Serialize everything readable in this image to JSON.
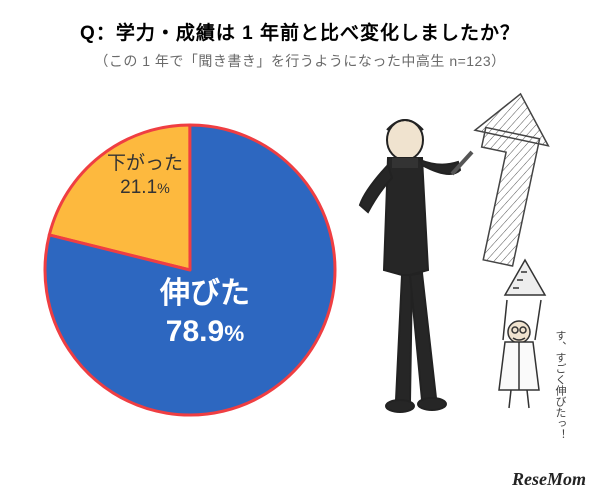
{
  "title": "Q：学力・成績は 1 年前と比べ変化しましたか？",
  "title_fontsize": 19,
  "subtitle": "（この 1 年で「聞き書き」を行うようになった中高生 n=123）",
  "subtitle_fontsize": 14,
  "subtitle_color": "#6a6a6a",
  "chart": {
    "type": "pie",
    "diameter": 290,
    "start_angle_deg": -90,
    "outline_color": "#ef3e42",
    "outline_width": 3,
    "slices": [
      {
        "key": "improved",
        "label": "伸びた",
        "value": 78.9,
        "pct_text": "78.9",
        "color": "#2d67c0",
        "label_color": "#ffffff",
        "label_fontsize": 30,
        "pct_fontsize": 30
      },
      {
        "key": "declined",
        "label": "下がった",
        "value": 21.1,
        "pct_text": "21.1",
        "color": "#fdb93e",
        "label_color": "#333333",
        "label_fontsize": 19,
        "pct_fontsize": 19
      }
    ]
  },
  "speech_text": "す、すごく伸びたっ！",
  "speech_fontsize": 11,
  "speech_color": "#444444",
  "logo_text": "ReseMom",
  "logo_fontsize": 18,
  "background_color": "#ffffff"
}
